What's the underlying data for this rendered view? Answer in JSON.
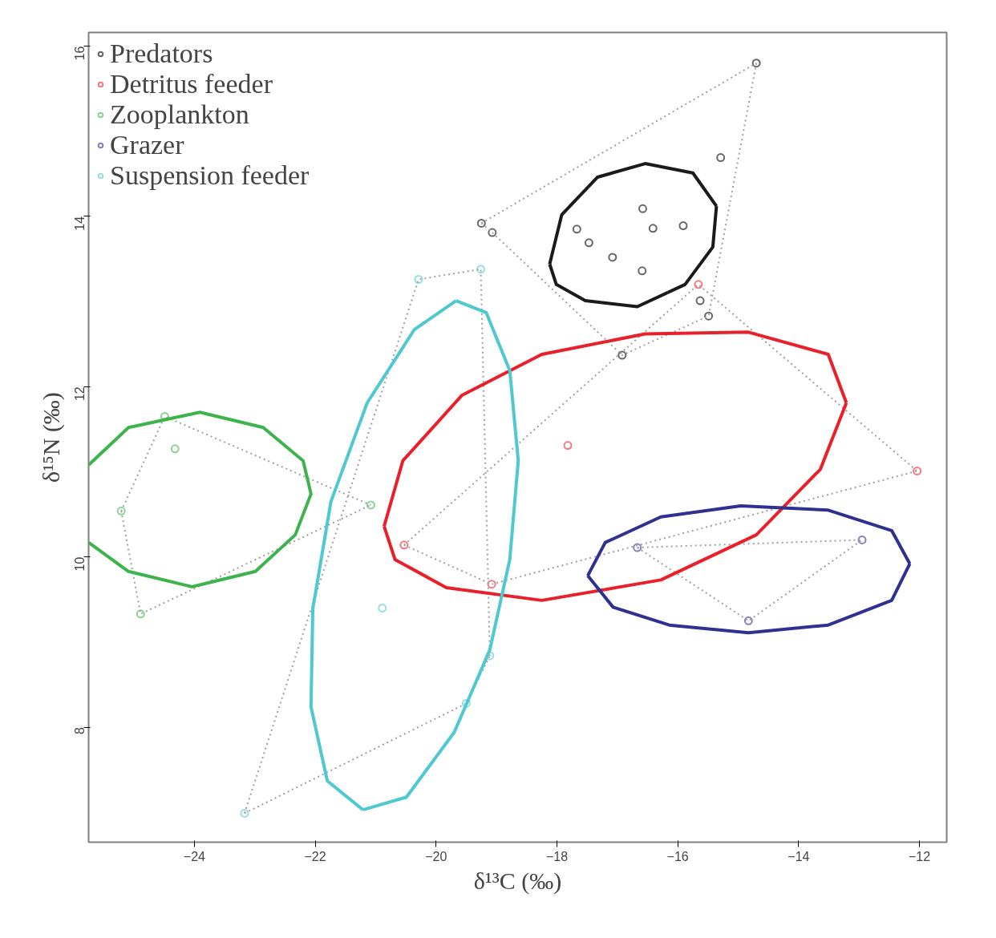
{
  "chart_data": {
    "type": "scatter",
    "xlabel": "δ¹³C (‰)",
    "ylabel": "δ¹⁵N (‰)",
    "xlim": [
      -25.75,
      -11.55
    ],
    "ylim": [
      6.65,
      16.16
    ],
    "xticks": [
      -24,
      -22,
      -20,
      -18,
      -16,
      -14,
      -12
    ],
    "yticks": [
      8,
      10,
      12,
      14,
      16
    ],
    "grid": false,
    "legend": "top left",
    "marker": "circle",
    "series": [
      {
        "name": "Predators",
        "color": "#000000",
        "x": [
          -14.7,
          -15.29,
          -19.25,
          -19.07,
          -16.58,
          -17.67,
          -16.41,
          -15.91,
          -17.47,
          -17.08,
          -16.59,
          -15.63,
          -15.49,
          -16.92
        ],
        "values": [
          15.8,
          14.69,
          13.92,
          13.81,
          14.09,
          13.85,
          13.86,
          13.89,
          13.69,
          13.52,
          13.36,
          13.01,
          12.83,
          12.37
        ]
      },
      {
        "name": "Detritus feeder",
        "color": "#e8202a",
        "x": [
          -15.66,
          -17.82,
          -20.53,
          -19.08,
          -12.04
        ],
        "values": [
          13.2,
          11.31,
          10.14,
          9.68,
          11.01
        ]
      },
      {
        "name": "Zooplankton",
        "color": "#3cb44b",
        "x": [
          -24.49,
          -24.32,
          -25.21,
          -24.89,
          -21.08
        ],
        "values": [
          11.65,
          11.27,
          10.54,
          9.33,
          10.61
        ]
      },
      {
        "name": "Grazer",
        "color": "#2e3192",
        "x": [
          -16.67,
          -14.83,
          -12.95
        ],
        "values": [
          10.11,
          9.25,
          10.2
        ]
      },
      {
        "name": "Suspension feeder",
        "color": "#4fc8d0",
        "x": [
          -20.29,
          -19.26,
          -19.11,
          -19.5,
          -23.17,
          -20.89
        ],
        "values": [
          13.26,
          13.38,
          8.84,
          8.28,
          6.99,
          9.4
        ]
      },
      {
        "type": "line",
        "marker": "none",
        "color": "#a0a0a0",
        "line_style": "dotted",
        "x": [
          -19.25,
          -14.7
        ],
        "values": [
          13.92,
          15.8
        ]
      },
      {
        "type": "line",
        "marker": "none",
        "color": "#a0a0a0",
        "line_style": "dotted",
        "x": [
          -19.25,
          -19.07,
          -16.92,
          -15.49,
          -14.7
        ],
        "values": [
          13.92,
          13.81,
          12.37,
          12.83,
          15.8
        ]
      },
      {
        "type": "line",
        "marker": "none",
        "color": "#a0a0a0",
        "line_style": "dotted",
        "x": [
          -20.53,
          -15.66,
          -12.04
        ],
        "values": [
          10.14,
          13.2,
          11.01
        ]
      },
      {
        "type": "line",
        "marker": "none",
        "color": "#a0a0a0",
        "line_style": "dotted",
        "x": [
          -20.53,
          -19.08,
          -12.04
        ],
        "values": [
          10.14,
          9.68,
          11.01
        ]
      },
      {
        "type": "line",
        "marker": "none",
        "color": "#a0a0a0",
        "line_style": "dotted",
        "x": [
          -25.21,
          -24.49,
          -21.08
        ],
        "values": [
          10.54,
          11.65,
          10.61
        ]
      },
      {
        "type": "line",
        "marker": "none",
        "color": "#a0a0a0",
        "line_style": "dotted",
        "x": [
          -25.21,
          -24.89,
          -21.08
        ],
        "values": [
          10.54,
          9.33,
          10.61
        ]
      },
      {
        "type": "line",
        "marker": "none",
        "color": "#a0a0a0",
        "line_style": "dotted",
        "x": [
          -16.67,
          -12.95
        ],
        "values": [
          10.11,
          10.2
        ]
      },
      {
        "type": "line",
        "marker": "none",
        "color": "#a0a0a0",
        "line_style": "dotted",
        "x": [
          -16.67,
          -14.83,
          -12.95
        ],
        "values": [
          10.11,
          9.25,
          10.2
        ]
      },
      {
        "type": "line",
        "marker": "none",
        "color": "#a0a0a0",
        "line_style": "dotted",
        "x": [
          -23.17,
          -20.29,
          -19.26,
          -19.11
        ],
        "values": [
          6.99,
          13.26,
          13.38,
          8.84
        ]
      },
      {
        "type": "line",
        "marker": "none",
        "color": "#a0a0a0",
        "line_style": "dotted",
        "x": [
          -23.17,
          -19.5,
          -19.11
        ],
        "values": [
          6.99,
          8.28,
          8.84
        ]
      },
      {
        "type": "line",
        "marker": "none",
        "color": "#1a1a1a",
        "line_style": "solid",
        "x": [
          -18.12,
          -17.92,
          -17.33,
          -16.54,
          -15.75,
          -15.36
        ],
        "values": [
          13.44,
          14.02,
          14.46,
          14.62,
          14.51,
          14.12
        ]
      },
      {
        "type": "line",
        "marker": "none",
        "color": "#1a1a1a",
        "line_style": "solid",
        "x": [
          -18.12,
          -18.01,
          -17.53,
          -16.67,
          -15.88,
          -15.42,
          -15.36
        ],
        "values": [
          13.44,
          13.2,
          13.01,
          12.94,
          13.2,
          13.64,
          14.12
        ]
      },
      {
        "type": "line",
        "marker": "none",
        "color": "#e8202a",
        "line_style": "solid",
        "x": [
          -20.86,
          -20.55,
          -19.57,
          -18.25,
          -16.54,
          -14.83,
          -13.51,
          -13.21
        ],
        "values": [
          10.36,
          11.13,
          11.9,
          12.38,
          12.62,
          12.64,
          12.38,
          11.81
        ]
      },
      {
        "type": "line",
        "marker": "none",
        "color": "#e8202a",
        "line_style": "solid",
        "x": [
          -20.86,
          -20.68,
          -19.83,
          -18.25,
          -16.28,
          -14.7,
          -13.64,
          -13.21
        ],
        "values": [
          10.36,
          9.97,
          9.64,
          9.49,
          9.73,
          10.26,
          11.03,
          11.81
        ]
      },
      {
        "type": "line",
        "marker": "none",
        "color": "#3cb44b",
        "line_style": "solid",
        "x": [
          -25.75,
          -25.09,
          -23.91,
          -22.86,
          -22.2,
          -22.07,
          -22.33,
          -22.99,
          -24.04,
          -25.09,
          -25.75
        ],
        "values": [
          11.08,
          11.52,
          11.7,
          11.52,
          11.13,
          10.74,
          10.26,
          9.83,
          9.65,
          9.83,
          10.17
        ]
      },
      {
        "type": "line",
        "marker": "none",
        "color": "#2e3192",
        "line_style": "solid",
        "x": [
          -17.49,
          -17.2,
          -16.28,
          -14.96,
          -13.51,
          -12.46,
          -12.16
        ],
        "values": [
          9.78,
          10.17,
          10.47,
          10.6,
          10.55,
          10.31,
          9.92
        ]
      },
      {
        "type": "line",
        "marker": "none",
        "color": "#2e3192",
        "line_style": "solid",
        "x": [
          -17.49,
          -17.07,
          -16.14,
          -14.83,
          -13.51,
          -12.46,
          -12.16
        ],
        "values": [
          9.78,
          9.41,
          9.2,
          9.11,
          9.2,
          9.49,
          9.92
        ]
      },
      {
        "type": "line",
        "marker": "none",
        "color": "#4fc8d0",
        "line_style": "solid",
        "x": [
          -19.67,
          -20.36,
          -21.14,
          -21.74,
          -22.04,
          -22.07,
          -21.8,
          -21.21
        ],
        "values": [
          13.01,
          12.67,
          11.81,
          10.65,
          9.39,
          8.24,
          7.37,
          7.03
        ]
      },
      {
        "type": "line",
        "marker": "none",
        "color": "#4fc8d0",
        "line_style": "solid",
        "x": [
          -19.67,
          -19.17,
          -18.78,
          -18.64,
          -18.78,
          -19.11,
          -19.7,
          -20.49,
          -21.21
        ],
        "values": [
          13.01,
          12.87,
          12.19,
          11.13,
          9.97,
          8.91,
          7.94,
          7.18,
          7.03
        ]
      }
    ]
  }
}
